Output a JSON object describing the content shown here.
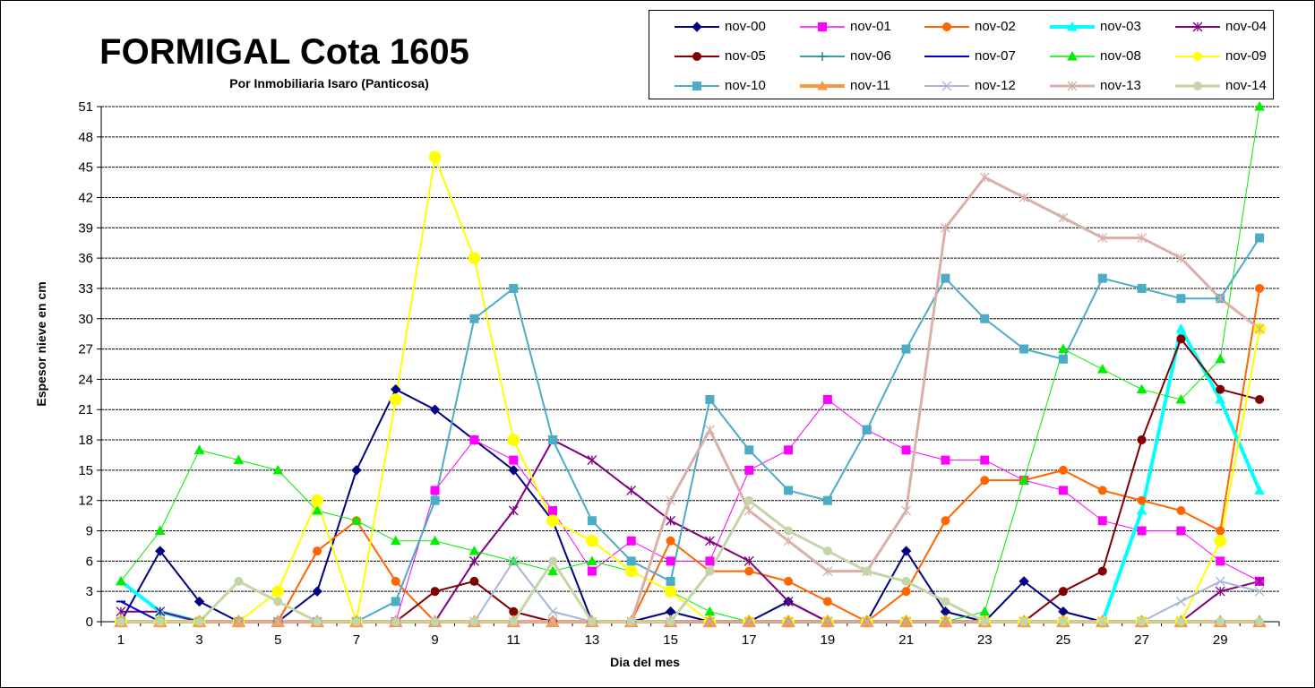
{
  "chart_data": {
    "type": "line",
    "title": "FORMIGAL Cota 1605",
    "subtitle": "Por Inmobiliaria  Isaro (Panticosa)",
    "xlabel": "Dia del mes",
    "ylabel": "Espesor nieve en cm",
    "x": [
      1,
      2,
      3,
      4,
      5,
      6,
      7,
      8,
      9,
      10,
      11,
      12,
      13,
      14,
      15,
      16,
      17,
      18,
      19,
      20,
      21,
      22,
      23,
      24,
      25,
      26,
      27,
      28,
      29,
      30
    ],
    "x_tick_labels": [
      "1",
      "3",
      "5",
      "7",
      "9",
      "11",
      "13",
      "15",
      "17",
      "19",
      "21",
      "23",
      "25",
      "27",
      "29"
    ],
    "ylim": [
      0,
      51
    ],
    "y_ticks": [
      "0",
      "3",
      "6",
      "9",
      "12",
      "15",
      "18",
      "21",
      "24",
      "27",
      "30",
      "33",
      "36",
      "39",
      "42",
      "45",
      "48",
      "51"
    ],
    "grid": "horizontal",
    "legend_position": "top-right",
    "series": [
      {
        "name": "nov-00",
        "color": "#000080",
        "marker": "diamond",
        "width": 2,
        "values": [
          0,
          7,
          2,
          0,
          0,
          3,
          15,
          23,
          21,
          18,
          15,
          10,
          0,
          0,
          1,
          0,
          0,
          2,
          0,
          0,
          7,
          1,
          0,
          4,
          1,
          0,
          0,
          0,
          0,
          0
        ]
      },
      {
        "name": "nov-01",
        "color": "#ff00ff",
        "marker": "square",
        "width": 1,
        "values": [
          0,
          0,
          0,
          0,
          0,
          0,
          0,
          0,
          13,
          18,
          16,
          11,
          5,
          8,
          6,
          6,
          15,
          17,
          22,
          19,
          17,
          16,
          16,
          14,
          13,
          10,
          9,
          9,
          6,
          4
        ]
      },
      {
        "name": "nov-02",
        "color": "#ff6600",
        "marker": "circle",
        "width": 2,
        "values": [
          0,
          0,
          0,
          0,
          0,
          7,
          10,
          4,
          0,
          0,
          0,
          0,
          0,
          0,
          8,
          5,
          5,
          4,
          2,
          0,
          3,
          10,
          14,
          14,
          15,
          13,
          12,
          11,
          9,
          33
        ]
      },
      {
        "name": "nov-03",
        "color": "#00ffff",
        "marker": "triangle",
        "width": 4,
        "values": [
          4,
          1,
          0,
          0,
          0,
          0,
          0,
          0,
          0,
          0,
          0,
          0,
          0,
          0,
          0,
          0,
          0,
          0,
          0,
          0,
          0,
          0,
          0,
          0,
          0,
          0,
          11,
          29,
          22,
          13
        ]
      },
      {
        "name": "nov-04",
        "color": "#800080",
        "marker": "star",
        "width": 2,
        "values": [
          1,
          1,
          0,
          0,
          0,
          0,
          0,
          0,
          0,
          6,
          11,
          18,
          16,
          13,
          10,
          8,
          6,
          2,
          0,
          0,
          0,
          0,
          0,
          0,
          0,
          0,
          0,
          0,
          3,
          4
        ]
      },
      {
        "name": "nov-05",
        "color": "#800000",
        "marker": "circle",
        "width": 2,
        "values": [
          0,
          0,
          0,
          0,
          0,
          0,
          0,
          0,
          3,
          4,
          1,
          0,
          0,
          0,
          0,
          0,
          0,
          0,
          0,
          0,
          0,
          0,
          0,
          0,
          3,
          5,
          18,
          28,
          23,
          22
        ]
      },
      {
        "name": "nov-06",
        "color": "#008080",
        "marker": "plus",
        "width": 1,
        "values": [
          0,
          0,
          0,
          0,
          0,
          0,
          0,
          0,
          0,
          0,
          0,
          0,
          0,
          0,
          0,
          0,
          0,
          0,
          0,
          0,
          0,
          0,
          0,
          0,
          0,
          0,
          0,
          0,
          0,
          0
        ]
      },
      {
        "name": "nov-07",
        "color": "#0000cc",
        "marker": "dash",
        "width": 2,
        "values": [
          2,
          0,
          0,
          0,
          0,
          0,
          0,
          0,
          0,
          0,
          0,
          0,
          0,
          0,
          0,
          0,
          0,
          0,
          0,
          0,
          0,
          0,
          0,
          0,
          0,
          0,
          0,
          0,
          0,
          0
        ]
      },
      {
        "name": "nov-08",
        "color": "#00ee00",
        "marker": "triangle",
        "width": 1,
        "values": [
          4,
          9,
          17,
          16,
          15,
          11,
          10,
          8,
          8,
          7,
          6,
          5,
          6,
          5,
          3,
          1,
          0,
          0,
          0,
          0,
          0,
          0,
          1,
          14,
          27,
          25,
          23,
          22,
          26,
          51
        ]
      },
      {
        "name": "nov-09",
        "color": "#ffff00",
        "marker": "circle",
        "width": 2,
        "values": [
          0,
          0,
          0,
          0,
          3,
          12,
          0,
          22,
          46,
          36,
          18,
          10,
          8,
          5,
          3,
          0,
          0,
          0,
          0,
          0,
          0,
          0,
          0,
          0,
          0,
          0,
          0,
          0,
          8,
          29
        ]
      },
      {
        "name": "nov-10",
        "color": "#4bacc6",
        "marker": "square",
        "width": 2,
        "values": [
          0,
          0,
          0,
          0,
          0,
          0,
          0,
          2,
          12,
          30,
          33,
          18,
          10,
          6,
          4,
          22,
          17,
          13,
          12,
          19,
          27,
          34,
          30,
          27,
          26,
          34,
          33,
          32,
          32,
          38
        ]
      },
      {
        "name": "nov-11",
        "color": "#f79646",
        "marker": "triangle",
        "width": 4,
        "values": [
          0,
          0,
          0,
          0,
          0,
          0,
          0,
          0,
          0,
          0,
          0,
          0,
          0,
          0,
          0,
          0,
          0,
          0,
          0,
          0,
          0,
          0,
          0,
          0,
          0,
          0,
          0,
          0,
          0,
          0
        ]
      },
      {
        "name": "nov-12",
        "color": "#a6b6d8",
        "marker": "x",
        "width": 2,
        "values": [
          0,
          0,
          0,
          0,
          0,
          0,
          0,
          0,
          0,
          0,
          6,
          1,
          0,
          0,
          0,
          0,
          0,
          0,
          0,
          0,
          0,
          0,
          0,
          0,
          0,
          0,
          0,
          2,
          4,
          3
        ]
      },
      {
        "name": "nov-13",
        "color": "#d8b0a8",
        "marker": "star",
        "width": 3,
        "values": [
          0,
          0,
          0,
          0,
          0,
          0,
          0,
          0,
          0,
          0,
          0,
          0,
          0,
          0,
          12,
          19,
          11,
          8,
          5,
          5,
          11,
          39,
          44,
          42,
          40,
          38,
          38,
          36,
          32,
          29
        ]
      },
      {
        "name": "nov-14",
        "color": "#c4d6a8",
        "marker": "circle",
        "width": 3,
        "values": [
          0,
          0,
          0,
          4,
          2,
          0,
          0,
          0,
          0,
          0,
          0,
          6,
          0,
          0,
          0,
          5,
          12,
          9,
          7,
          5,
          4,
          2,
          0,
          0,
          0,
          0,
          0,
          0,
          0,
          0
        ]
      }
    ]
  }
}
